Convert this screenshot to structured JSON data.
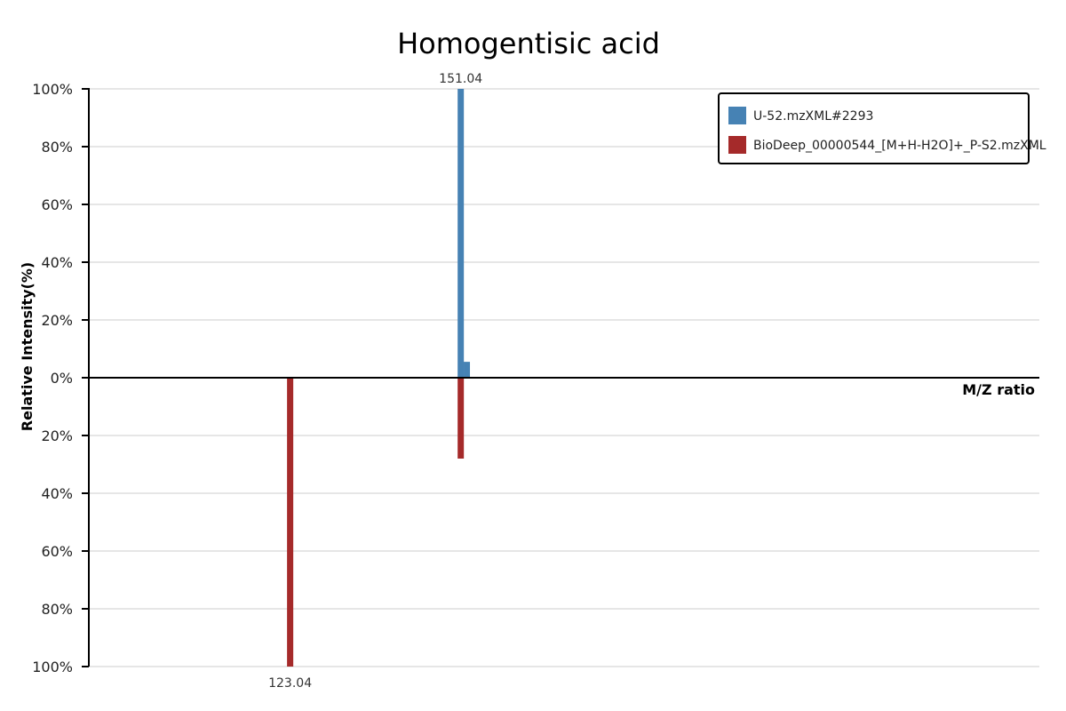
{
  "chart_data": {
    "type": "bar",
    "title": "Homogentisic acid",
    "xlabel": "M/Z ratio",
    "ylabel": "Relative Intensity(%)",
    "yticks": [
      "100%",
      "80%",
      "60%",
      "40%",
      "20%",
      "0%",
      "20%",
      "40%",
      "60%",
      "80%",
      "100%"
    ],
    "y_tick_values": [
      100,
      80,
      60,
      40,
      20,
      0,
      -20,
      -40,
      -60,
      -80,
      -100
    ],
    "ylim": [
      -100,
      100
    ],
    "xlim": [
      90,
      246
    ],
    "grid": true,
    "legend_position": "top-right",
    "series": [
      {
        "name": "U-52.mzXML#2293",
        "color": "#4682B4",
        "direction": "up",
        "peaks": [
          {
            "mz": 151.04,
            "intensity": 100,
            "label": "151.04"
          },
          {
            "mz": 152.04,
            "intensity": 5.5,
            "label": ""
          }
        ]
      },
      {
        "name": "BioDeep_00000544_[M+H-H2O]+_P-S2.mzXML",
        "color": "#A52A2A",
        "direction": "down",
        "peaks": [
          {
            "mz": 123.04,
            "intensity": 100,
            "label": "123.04"
          },
          {
            "mz": 151.04,
            "intensity": 28,
            "label": ""
          }
        ]
      }
    ]
  }
}
